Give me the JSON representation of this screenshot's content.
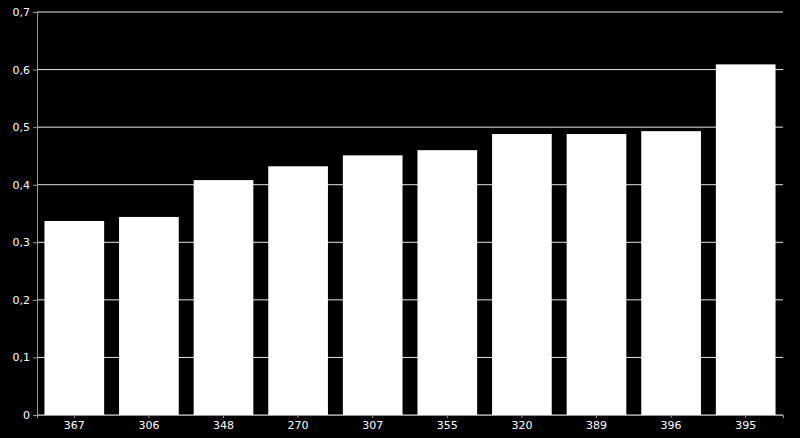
{
  "chart_data": {
    "type": "bar",
    "categories": [
      "367",
      "306",
      "348",
      "270",
      "307",
      "355",
      "320",
      "389",
      "396",
      "395"
    ],
    "values": [
      0.337,
      0.344,
      0.408,
      0.432,
      0.451,
      0.46,
      0.488,
      0.488,
      0.493,
      0.609
    ],
    "color": "#ffffff",
    "ylim": [
      0,
      0.7
    ],
    "yticks": [
      0,
      {
        "value": 0.1,
        "label": "0,1"
      },
      {
        "value": 0.2,
        "label": "0,2"
      },
      {
        "value": 0.3,
        "label": "0,3"
      },
      {
        "value": 0.4,
        "label": "0,4"
      },
      {
        "value": 0.5,
        "label": "0,5"
      },
      {
        "value": 0.6,
        "label": "0,6"
      },
      {
        "value": 0.7,
        "label": "0,7"
      }
    ],
    "grid": true
  }
}
